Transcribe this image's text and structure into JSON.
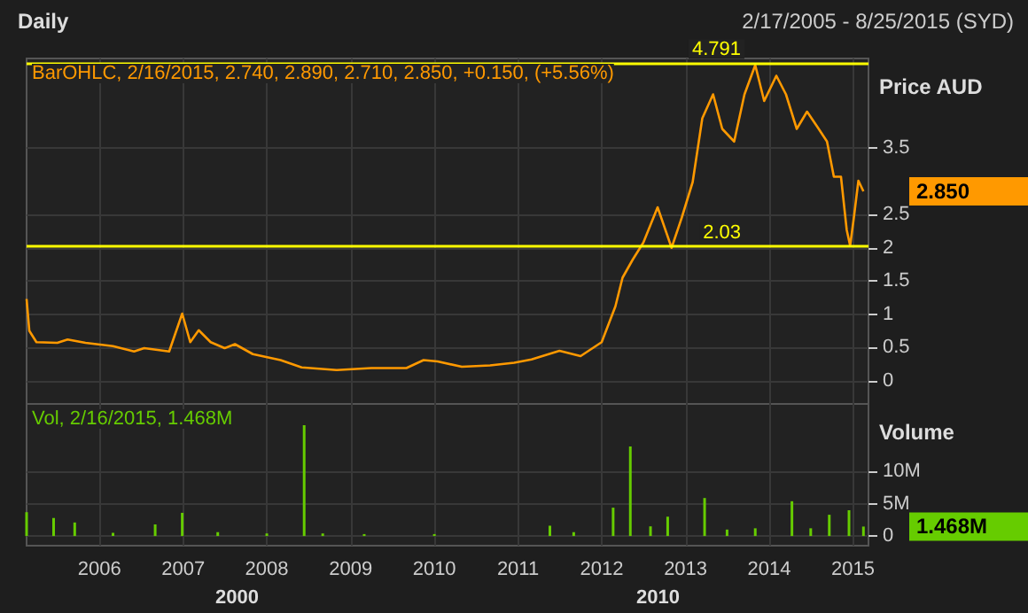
{
  "chart_data": [
    {
      "type": "line",
      "title": "Daily",
      "subtitle": "2/17/2005 - 8/25/2015 (SYD)",
      "ylabel": "Price AUD",
      "x": [
        "2005-02-17",
        "2005-03-01",
        "2005-04-01",
        "2005-07-01",
        "2005-08-15",
        "2005-11-01",
        "2006-03-01",
        "2006-06-01",
        "2006-07-15",
        "2006-11-01",
        "2006-12-28",
        "2007-02-01",
        "2007-03-10",
        "2007-05-01",
        "2007-07-01",
        "2007-08-15",
        "2007-11-01",
        "2008-03-01",
        "2008-06-01",
        "2008-11-01",
        "2009-04-01",
        "2009-09-01",
        "2009-11-15",
        "2010-01-15",
        "2010-05-01",
        "2010-09-01",
        "2010-12-15",
        "2011-03-01",
        "2011-07-01",
        "2011-10-01",
        "2012-01-01",
        "2012-03-01",
        "2012-04-01",
        "2012-05-15",
        "2012-07-01",
        "2012-09-01",
        "2012-11-01",
        "2012-12-15",
        "2013-02-01",
        "2013-03-15",
        "2013-05-01",
        "2013-06-10",
        "2013-08-01",
        "2013-09-15",
        "2013-11-01",
        "2013-12-10",
        "2014-02-01",
        "2014-03-15",
        "2014-05-01",
        "2014-06-15",
        "2014-08-01",
        "2014-09-10",
        "2014-10-10",
        "2014-11-10",
        "2014-12-05",
        "2014-12-20",
        "2015-01-05",
        "2015-01-25",
        "2015-02-16"
      ],
      "series": [
        {
          "color": "#ff9900",
          "values": [
            1.23,
            0.75,
            0.58,
            0.57,
            0.62,
            0.57,
            0.52,
            0.44,
            0.49,
            0.44,
            1.01,
            0.58,
            0.76,
            0.58,
            0.49,
            0.55,
            0.4,
            0.31,
            0.2,
            0.16,
            0.19,
            0.19,
            0.31,
            0.29,
            0.21,
            0.23,
            0.27,
            0.32,
            0.45,
            0.37,
            0.58,
            1.12,
            1.55,
            1.82,
            2.08,
            2.61,
            2.0,
            2.45,
            2.99,
            3.95,
            4.31,
            3.79,
            3.6,
            4.31,
            4.75,
            4.21,
            4.59,
            4.31,
            3.79,
            4.05,
            3.81,
            3.6,
            3.07,
            3.07,
            2.27,
            2.03,
            2.45,
            3.01,
            2.85
          ]
        }
      ],
      "xlim": [
        "2005-02-17",
        "2015-03-10"
      ],
      "xticks": [
        "2006",
        "2007",
        "2008",
        "2009",
        "2010",
        "2011",
        "2012",
        "2013",
        "2014",
        "2015"
      ],
      "ylim": [
        -0.35,
        4.85
      ],
      "yticks": [
        0,
        0.5,
        1,
        1.5,
        2,
        2.5,
        3.5
      ],
      "tick_labels": "y",
      "grid": true,
      "ref_lines": [
        {
          "axis": "y",
          "value": 4.791,
          "label": "4.791",
          "color": "#ffff00"
        },
        {
          "axis": "y",
          "value": 2.03,
          "label": "2.03",
          "color": "#ffff00"
        }
      ],
      "annotations": [
        "BarOHLC, 2/16/2015, 2.740, 2.890, 2.710, 2.850, +0.150, (+5.56%)",
        "2.850"
      ]
    },
    {
      "type": "bar",
      "ylabel": "Volume",
      "x": [
        "2005-02-17",
        "2005-06-15",
        "2005-09-15",
        "2006-03-01",
        "2006-09-01",
        "2006-12-28",
        "2007-06-01",
        "2008-01-01",
        "2008-06-12",
        "2008-09-01",
        "2009-03-01",
        "2010-01-01",
        "2011-05-20",
        "2011-09-01",
        "2012-02-20",
        "2012-05-05",
        "2012-08-01",
        "2012-10-15",
        "2013-03-25",
        "2013-07-01",
        "2013-11-01",
        "2014-04-10",
        "2014-07-01",
        "2014-09-20",
        "2014-12-15",
        "2015-02-16"
      ],
      "series": [
        {
          "color": "#66cc00",
          "values": [
            3.7,
            2.8,
            2.1,
            0.5,
            1.8,
            3.6,
            0.6,
            0.4,
            17.2,
            0.4,
            0.3,
            0.3,
            1.6,
            0.6,
            4.4,
            13.9,
            1.5,
            3.0,
            5.9,
            1.0,
            1.2,
            5.4,
            1.2,
            3.3,
            4.0,
            1.468
          ]
        }
      ],
      "xlim": [
        "2005-02-17",
        "2015-03-10"
      ],
      "xticks": [
        "2006",
        "2007",
        "2008",
        "2009",
        "2010",
        "2011",
        "2012",
        "2013",
        "2014",
        "2015"
      ],
      "ylim": [
        -1.5,
        20.5
      ],
      "yticks": [
        0,
        {
          "value": 5,
          "label": "5M"
        },
        {
          "value": 10,
          "label": "10M"
        }
      ],
      "grid": true,
      "annotations": [
        "Vol, 2/16/2015, 1.468M",
        "1.468M",
        "2000",
        "2010"
      ]
    }
  ]
}
